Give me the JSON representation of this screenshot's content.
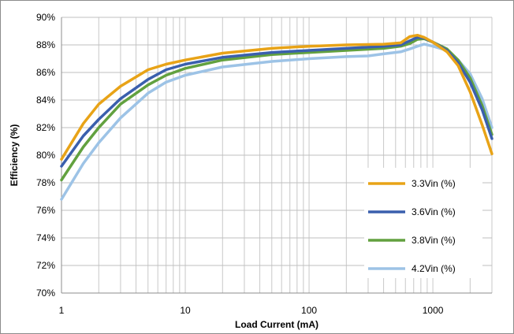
{
  "chart_data": {
    "type": "line",
    "title": "",
    "xlabel": "Load Current (mA)",
    "ylabel": "Efficiency (%)",
    "x_scale": "log",
    "xlim": [
      1,
      3000
    ],
    "ylim": [
      70,
      90
    ],
    "x_ticks": [
      1,
      10,
      100,
      1000
    ],
    "x_tick_labels": [
      "1",
      "10",
      "100",
      "1000"
    ],
    "y_ticks": [
      70,
      72,
      74,
      76,
      78,
      80,
      82,
      84,
      86,
      88,
      90
    ],
    "y_tick_labels": [
      "70%",
      "72%",
      "74%",
      "76%",
      "78%",
      "80%",
      "82%",
      "84%",
      "86%",
      "88%",
      "90%"
    ],
    "grid": true,
    "legend_position": "bottom-right",
    "series": [
      {
        "name": "3.3Vin (%)",
        "color": "#E8A317",
        "points": [
          [
            1,
            79.7
          ],
          [
            1.5,
            82.3
          ],
          [
            2,
            83.7
          ],
          [
            3,
            85.0
          ],
          [
            5,
            86.2
          ],
          [
            7,
            86.6
          ],
          [
            10,
            86.9
          ],
          [
            20,
            87.4
          ],
          [
            50,
            87.75
          ],
          [
            100,
            87.9
          ],
          [
            200,
            88.0
          ],
          [
            400,
            88.05
          ],
          [
            550,
            88.15
          ],
          [
            650,
            88.6
          ],
          [
            750,
            88.7
          ],
          [
            850,
            88.55
          ],
          [
            1000,
            88.2
          ],
          [
            1300,
            87.5
          ],
          [
            1600,
            86.5
          ],
          [
            2000,
            84.6
          ],
          [
            2500,
            82.2
          ],
          [
            3000,
            80.1
          ]
        ]
      },
      {
        "name": "3.6Vin (%)",
        "color": "#3A5FAD",
        "points": [
          [
            1,
            79.2
          ],
          [
            1.5,
            81.4
          ],
          [
            2,
            82.6
          ],
          [
            3,
            84.1
          ],
          [
            5,
            85.5
          ],
          [
            7,
            86.2
          ],
          [
            10,
            86.6
          ],
          [
            20,
            87.1
          ],
          [
            50,
            87.45
          ],
          [
            100,
            87.6
          ],
          [
            200,
            87.75
          ],
          [
            400,
            87.9
          ],
          [
            550,
            88.0
          ],
          [
            650,
            88.3
          ],
          [
            750,
            88.55
          ],
          [
            850,
            88.5
          ],
          [
            1000,
            88.2
          ],
          [
            1300,
            87.6
          ],
          [
            1600,
            86.7
          ],
          [
            2000,
            85.3
          ],
          [
            2500,
            83.3
          ],
          [
            3000,
            81.2
          ]
        ]
      },
      {
        "name": "3.8Vin (%)",
        "color": "#62A13F",
        "points": [
          [
            1,
            78.2
          ],
          [
            1.5,
            80.6
          ],
          [
            2,
            82.0
          ],
          [
            3,
            83.7
          ],
          [
            5,
            85.1
          ],
          [
            7,
            85.8
          ],
          [
            10,
            86.3
          ],
          [
            20,
            86.9
          ],
          [
            50,
            87.3
          ],
          [
            100,
            87.45
          ],
          [
            200,
            87.6
          ],
          [
            400,
            87.75
          ],
          [
            550,
            87.9
          ],
          [
            650,
            88.1
          ],
          [
            750,
            88.4
          ],
          [
            850,
            88.45
          ],
          [
            1000,
            88.2
          ],
          [
            1300,
            87.7
          ],
          [
            1600,
            86.9
          ],
          [
            2000,
            85.6
          ],
          [
            2500,
            83.6
          ],
          [
            3000,
            81.5
          ]
        ]
      },
      {
        "name": "4.2Vin (%)",
        "color": "#9DC3E6",
        "points": [
          [
            1,
            76.8
          ],
          [
            1.5,
            79.4
          ],
          [
            2,
            80.9
          ],
          [
            3,
            82.7
          ],
          [
            5,
            84.5
          ],
          [
            7,
            85.3
          ],
          [
            10,
            85.8
          ],
          [
            20,
            86.4
          ],
          [
            50,
            86.8
          ],
          [
            100,
            87.0
          ],
          [
            200,
            87.15
          ],
          [
            300,
            87.2
          ],
          [
            400,
            87.35
          ],
          [
            550,
            87.5
          ],
          [
            650,
            87.7
          ],
          [
            750,
            87.9
          ],
          [
            850,
            88.05
          ],
          [
            1000,
            87.9
          ],
          [
            1300,
            87.6
          ],
          [
            1600,
            86.9
          ],
          [
            2000,
            85.9
          ],
          [
            2500,
            84.1
          ],
          [
            3000,
            82.0
          ]
        ]
      }
    ]
  }
}
